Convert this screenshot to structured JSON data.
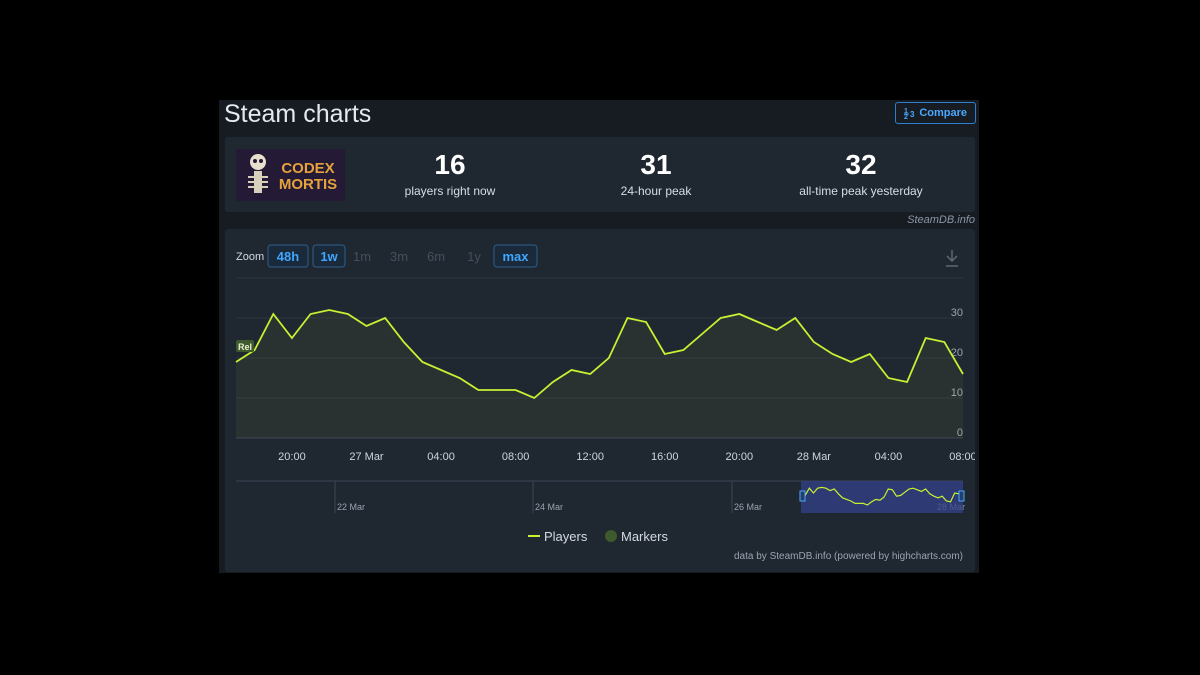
{
  "header": {
    "title": "Steam charts",
    "compare": "Compare"
  },
  "game": {
    "image_text": [
      "CODEX",
      "MORTIS"
    ]
  },
  "stats": [
    {
      "value": 16,
      "label": "players right now"
    },
    {
      "value": 31,
      "label": "24-hour peak"
    },
    {
      "value": 32,
      "label": "all-time peak yesterday"
    }
  ],
  "source": "SteamDB.info",
  "zoom": {
    "label": "Zoom",
    "buttons": [
      {
        "label": "48h",
        "active": true
      },
      {
        "label": "1w",
        "active": true
      },
      {
        "label": "1m",
        "active": false
      },
      {
        "label": "3m",
        "active": false
      },
      {
        "label": "6m",
        "active": false
      },
      {
        "label": "1y",
        "active": false
      },
      {
        "label": "max",
        "active": true
      }
    ]
  },
  "chart_data": {
    "type": "line",
    "x": [
      -7,
      -6,
      -5,
      -4,
      -3,
      -2,
      -1,
      0,
      1,
      2,
      3,
      4,
      5,
      6,
      7,
      8,
      9,
      10,
      11,
      12,
      13,
      14,
      15,
      16,
      17,
      18,
      19,
      20,
      21,
      22,
      23,
      24,
      25,
      26,
      27,
      28,
      29,
      30,
      31,
      32
    ],
    "series": [
      {
        "name": "Players",
        "color": "#c8f032",
        "values": [
          19,
          22,
          31,
          25,
          31,
          32,
          31,
          28,
          30,
          24,
          19,
          17,
          15,
          12,
          12,
          12,
          10,
          14,
          17,
          16,
          20,
          30,
          29,
          21,
          22,
          26,
          30,
          31,
          29,
          27,
          30,
          24,
          21,
          19,
          21,
          15,
          14,
          25,
          24,
          16
        ]
      }
    ],
    "xlim": [
      -7,
      32
    ],
    "ylim": [
      0,
      40
    ],
    "yticks": [
      0,
      10,
      20,
      30
    ],
    "xticks": [
      {
        "value": -4,
        "label": "20:00"
      },
      {
        "value": 0,
        "label": "27 Mar"
      },
      {
        "value": 4,
        "label": "04:00"
      },
      {
        "value": 8,
        "label": "08:00"
      },
      {
        "value": 12,
        "label": "12:00"
      },
      {
        "value": 16,
        "label": "16:00"
      },
      {
        "value": 20,
        "label": "20:00"
      },
      {
        "value": 24,
        "label": "28 Mar"
      },
      {
        "value": 28,
        "label": "04:00"
      },
      {
        "value": 32,
        "label": "08:00"
      }
    ],
    "grid": true,
    "markers": {
      "name": "Markers",
      "color": "#3e5a2c",
      "items": [
        {
          "x": -7,
          "label": "Rel"
        }
      ]
    }
  },
  "navigator": {
    "labels": [
      "22 Mar",
      "24 Mar",
      "26 Mar",
      "28 Mar"
    ]
  },
  "credits": "data by SteamDB.info (powered by highcharts.com)"
}
